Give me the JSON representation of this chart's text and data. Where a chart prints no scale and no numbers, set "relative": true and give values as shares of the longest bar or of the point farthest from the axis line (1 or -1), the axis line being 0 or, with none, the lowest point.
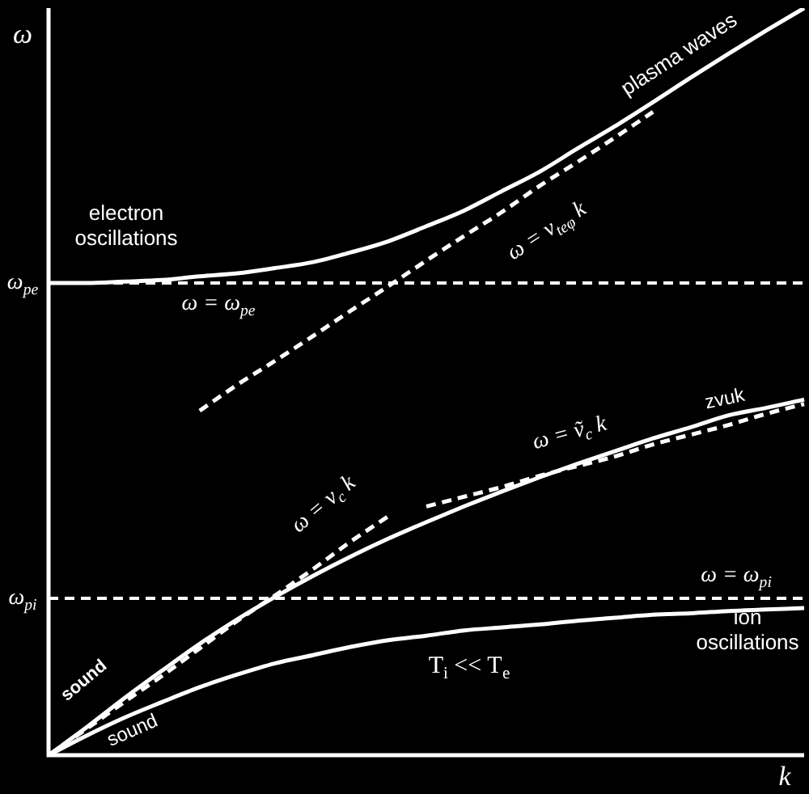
{
  "chart_data": {
    "type": "line",
    "relative": true,
    "xlabel": "k",
    "ylabel": "ω",
    "marker": "none",
    "categories": [
      null,
      null,
      null,
      null,
      null,
      null,
      null,
      null,
      null,
      null,
      null,
      null,
      null,
      null,
      null,
      null,
      null,
      null,
      null,
      null,
      null
    ],
    "series": [
      {
        "name": "plasma waves",
        "color": "#ffffff",
        "line_style": "solid",
        "values": [
          0.632,
          0.632,
          0.634,
          0.636,
          0.641,
          0.645,
          0.652,
          0.66,
          0.673,
          0.688,
          0.708,
          0.729,
          0.755,
          0.781,
          0.812,
          0.842,
          0.874,
          0.907,
          0.939,
          0.97,
          1
        ]
      },
      {
        "name": "ω = v$_{teφ}$ k",
        "color": "#ffffff",
        "line_style": "dashed",
        "values": [
          null,
          null,
          null,
          null,
          0.461,
          0.496,
          0.528,
          0.561,
          0.595,
          0.628,
          0.662,
          0.695,
          0.727,
          0.762,
          0.794,
          0.827,
          0.861,
          null,
          null,
          null,
          null
        ]
      },
      {
        "name": "zvuk",
        "color": "#ffffff",
        "line_style": "solid",
        "values": [
          0,
          0.037,
          0.076,
          0.113,
          0.149,
          0.182,
          0.212,
          0.24,
          0.266,
          0.29,
          0.312,
          0.333,
          0.353,
          0.372,
          0.39,
          0.407,
          0.424,
          0.439,
          0.455,
          0.465,
          0.476
        ]
      },
      {
        "name": "ω = v$_{c}$ k",
        "color": "#ffffff",
        "line_style": "dashed",
        "values": [
          0,
          0.035,
          0.071,
          0.106,
          0.143,
          0.18,
          0.214,
          0.249,
          0.286,
          0.32,
          null,
          null,
          null,
          null,
          null,
          null,
          null,
          null,
          null,
          null,
          null
        ]
      },
      {
        "name": "ω = ṽ$_{c}$ k",
        "color": "#ffffff",
        "line_style": "dashed",
        "values": [
          null,
          null,
          null,
          null,
          null,
          null,
          null,
          null,
          null,
          null,
          0.333,
          0.346,
          0.359,
          0.374,
          0.387,
          0.4,
          0.416,
          0.429,
          0.442,
          0.457,
          0.47
        ]
      },
      {
        "name": "ion oscillations",
        "color": "#ffffff",
        "line_style": "solid",
        "values": [
          0,
          0.026,
          0.05,
          0.071,
          0.091,
          0.108,
          0.123,
          0.134,
          0.145,
          0.154,
          0.16,
          0.167,
          0.171,
          0.175,
          0.18,
          0.184,
          0.188,
          0.19,
          0.193,
          0.195,
          0.197
        ]
      }
    ],
    "ref_lines": [
      {
        "axis": "y",
        "value": 0.632,
        "label": "ω = ω$_{pe}$",
        "color": "#ffffff",
        "line_style": "dashed"
      },
      {
        "axis": "y",
        "value": 0.21,
        "label": "ω = ω$_{pi}$",
        "color": "#ffffff",
        "line_style": "dashed"
      }
    ],
    "annotations": [
      "electron oscillations",
      "sound",
      "sound",
      "T$_{i}$ << T$_{e}$",
      "ω$_{pe}$",
      "ω$_{pi}$"
    ]
  }
}
